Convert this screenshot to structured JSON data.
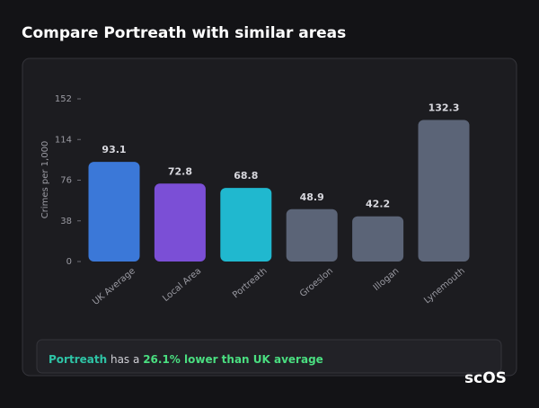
{
  "header": {
    "title": "Compare Portreath with similar areas"
  },
  "chart_data": {
    "type": "bar",
    "y_label": "Crimes per 1,000",
    "categories": [
      "UK Average",
      "Local Area",
      "Portreath",
      "Groeslon",
      "Illogan",
      "Lynemouth"
    ],
    "values": [
      93.1,
      72.8,
      68.8,
      48.9,
      42.2,
      132.3
    ],
    "colors": [
      "#3b78d8",
      "#7b4fd6",
      "#20b8cf",
      "#5b6477",
      "#5b6477",
      "#5b6477"
    ],
    "ylim": [
      0,
      152
    ],
    "yticks": [
      0,
      38,
      76,
      114,
      152
    ],
    "grid": false
  },
  "summary": {
    "area": "Portreath",
    "text": "has a",
    "highlight": "26.1% lower than UK average"
  },
  "logo": "scOS"
}
